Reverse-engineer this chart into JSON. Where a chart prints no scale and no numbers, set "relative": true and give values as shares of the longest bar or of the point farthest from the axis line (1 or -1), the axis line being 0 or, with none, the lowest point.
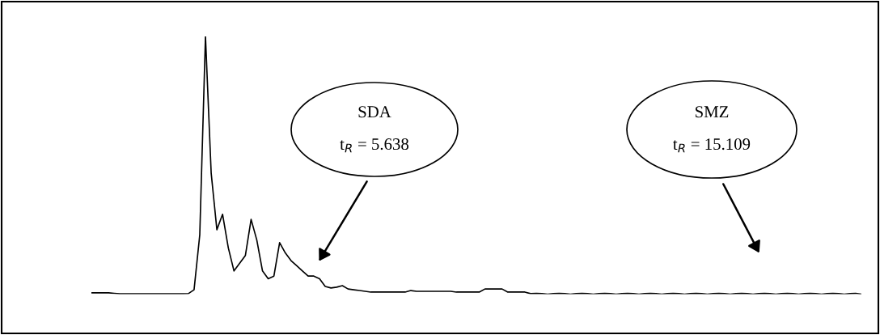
{
  "chart_data": {
    "type": "line",
    "relative": true,
    "color": "#000000",
    "categories": [
      null,
      null,
      null,
      null,
      null,
      null,
      null,
      null,
      null,
      null,
      null,
      null,
      null,
      null,
      null,
      null,
      null,
      null,
      null,
      null,
      null,
      null,
      null,
      null,
      null,
      null,
      null,
      null,
      null,
      null,
      null,
      null,
      null,
      null,
      null,
      null,
      null,
      null,
      null,
      null,
      null,
      null,
      null,
      null,
      null,
      null,
      null,
      null,
      null,
      null,
      null,
      null,
      null,
      null,
      null,
      null,
      null,
      null,
      null,
      null,
      null,
      null,
      null,
      null,
      null,
      null,
      null,
      null,
      null,
      null,
      null,
      null,
      null,
      null,
      null,
      null,
      null,
      null,
      null,
      null,
      null,
      null,
      null,
      null,
      null,
      null,
      null,
      null,
      null,
      null,
      null,
      null,
      null,
      null,
      null,
      null,
      null,
      null,
      null,
      null,
      null,
      null,
      null,
      null,
      null,
      null,
      null,
      null,
      null,
      null,
      null,
      null,
      null,
      null,
      null,
      null,
      null,
      null,
      null,
      null,
      null,
      null,
      null,
      null,
      null,
      null,
      null,
      null,
      null,
      null,
      null,
      null,
      null,
      null,
      null,
      null
    ],
    "values": [
      0.005,
      0.005,
      0.005,
      0.005,
      0.003,
      0.001,
      0.001,
      0.001,
      0.001,
      0.001,
      0.001,
      0.001,
      0.001,
      0.001,
      0.001,
      0.001,
      0.001,
      0.002,
      0.017,
      0.23,
      1,
      0.47,
      0.25,
      0.31,
      0.18,
      0.09,
      0.12,
      0.15,
      0.29,
      0.21,
      0.09,
      0.06,
      0.07,
      0.2,
      0.16,
      0.13,
      0.11,
      0.09,
      0.07,
      0.07,
      0.06,
      0.03,
      0.024,
      0.027,
      0.033,
      0.02,
      0.017,
      0.014,
      0.011,
      0.008,
      0.008,
      0.008,
      0.008,
      0.008,
      0.008,
      0.008,
      0.014,
      0.011,
      0.011,
      0.011,
      0.011,
      0.011,
      0.011,
      0.011,
      0.008,
      0.008,
      0.008,
      0.008,
      0.008,
      0.02,
      0.02,
      0.02,
      0.02,
      0.008,
      0.008,
      0.008,
      0.008,
      0.002,
      0.003,
      0.002,
      0,
      0.002,
      0.003,
      0.002,
      0,
      0.002,
      0.003,
      0.002,
      0,
      0.002,
      0.003,
      0.002,
      0,
      0.002,
      0.003,
      0.002,
      0,
      0.002,
      0.003,
      0.002,
      0,
      0.002,
      0.003,
      0.002,
      0,
      0.002,
      0.003,
      0.002,
      0,
      0.002,
      0.003,
      0.002,
      0,
      0.002,
      0.003,
      0.002,
      0,
      0.002,
      0.003,
      0.002,
      0,
      0.002,
      0.003,
      0.002,
      0,
      0.002,
      0.003,
      0.002,
      0,
      0.002,
      0.003,
      0.002,
      0,
      0.002,
      0.003,
      0
    ],
    "annotations": [
      "SDA\nt$_{R}$ = 5.638",
      "SMZ\nt$_{R}$ = 15.109"
    ]
  }
}
